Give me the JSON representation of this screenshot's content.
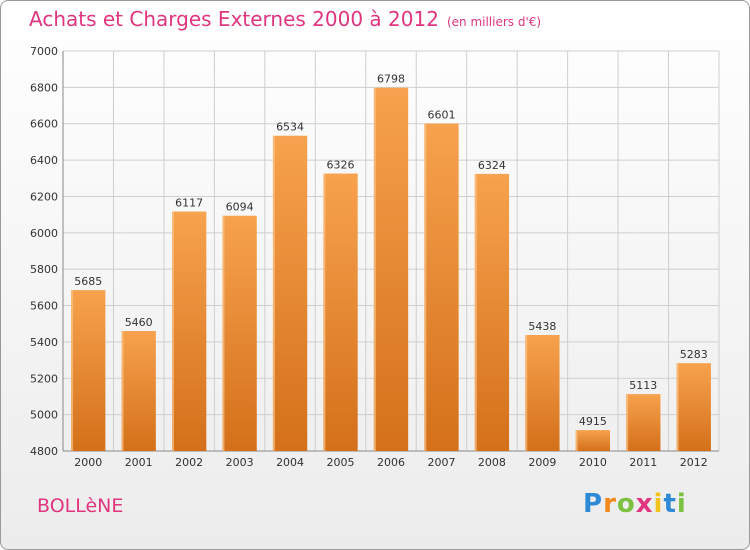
{
  "header": {
    "title": "Achats et Charges Externes 2000 à 2012",
    "subtitle": "(en milliers d'€)"
  },
  "footer": {
    "place": "BOLLèNE",
    "logo_letters": [
      "P",
      "r",
      "o",
      "x",
      "i",
      "t",
      "i"
    ],
    "logo_colors": [
      "#2e8ad6",
      "#f08a1c",
      "#7cc142",
      "#e0357f",
      "#f0c41c",
      "#2e8ad6",
      "#7cc142"
    ]
  },
  "chart_data": {
    "type": "bar",
    "categories": [
      "2000",
      "2001",
      "2002",
      "2003",
      "2004",
      "2005",
      "2006",
      "2007",
      "2008",
      "2009",
      "2010",
      "2011",
      "2012"
    ],
    "values": [
      5685,
      5460,
      6117,
      6094,
      6534,
      6326,
      6798,
      6601,
      6324,
      5438,
      4915,
      5113,
      5283
    ],
    "yticks": [
      4800,
      5000,
      5200,
      5400,
      5600,
      5800,
      6000,
      6200,
      6400,
      6600,
      6800,
      7000
    ],
    "ylim": [
      4800,
      7000
    ],
    "grid": true,
    "bar_color": "#f0922e",
    "bar_color_dark": "#d4701a"
  }
}
